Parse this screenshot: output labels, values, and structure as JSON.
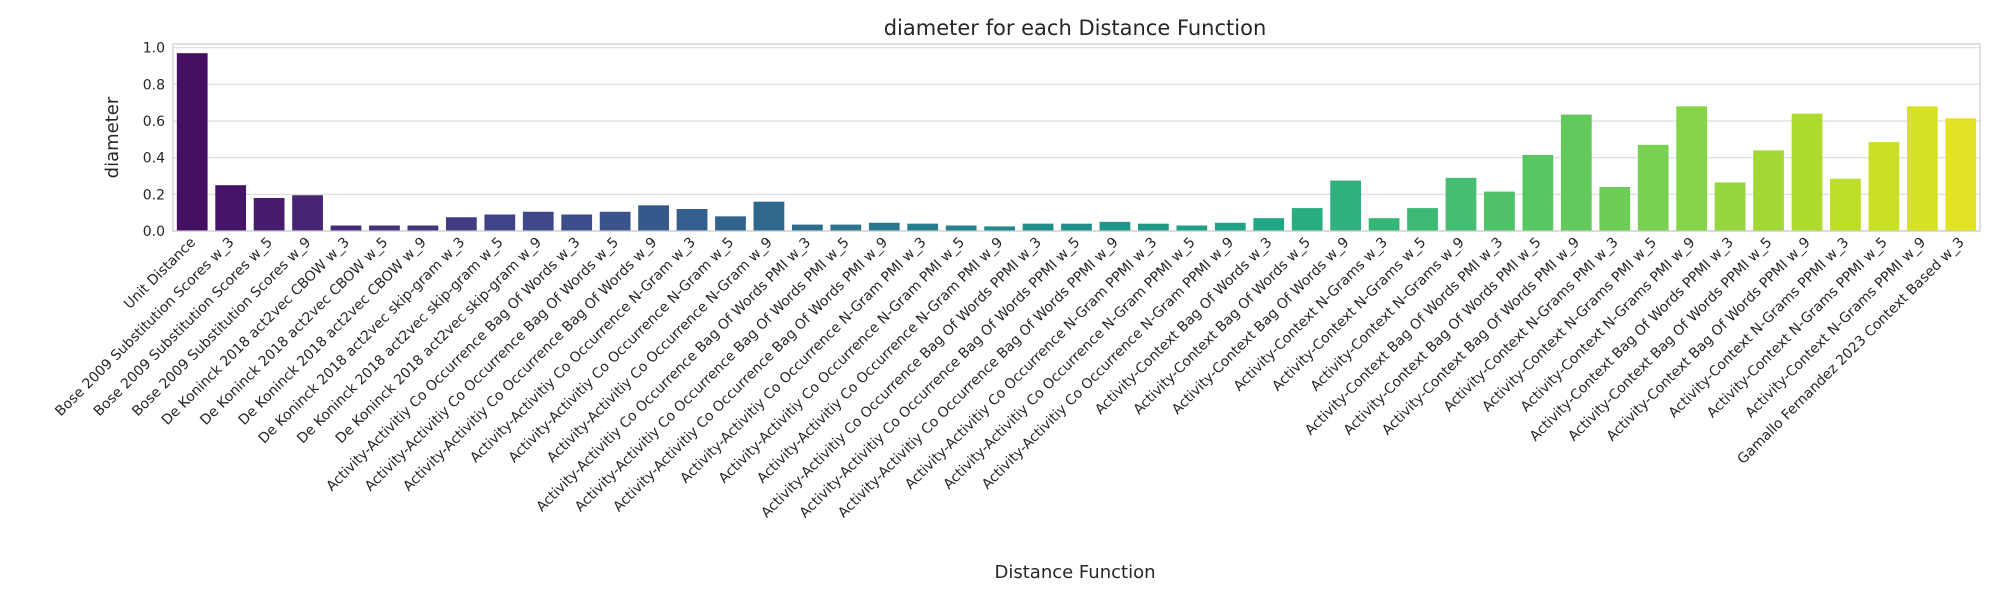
{
  "chart_data": {
    "type": "bar",
    "title": "diameter for each Distance Function",
    "xlabel": "Distance Function",
    "ylabel": "diameter",
    "ylim": [
      0,
      1.02
    ],
    "yticks": [
      "0.0",
      "0.2",
      "0.4",
      "0.6",
      "0.8",
      "1.0"
    ],
    "grid": true,
    "palette": "viridis",
    "categories": [
      "Unit Distance",
      "Bose 2009 Substitution Scores w_3",
      "Bose 2009 Substitution Scores w_5",
      "Bose 2009 Substitution Scores w_9",
      "De Koninck 2018 act2vec CBOW w_3",
      "De Koninck 2018 act2vec CBOW w_5",
      "De Koninck 2018 act2vec CBOW w_9",
      "De Koninck 2018 act2vec skip-gram w_3",
      "De Koninck 2018 act2vec skip-gram w_5",
      "De Koninck 2018 act2vec skip-gram w_9",
      "Activity-Activitiy Co Occurrence Bag Of Words w_3",
      "Activity-Activitiy Co Occurrence Bag Of Words w_5",
      "Activity-Activitiy Co Occurrence Bag Of Words w_9",
      "Activity-Activitiy Co Occurrence N-Gram w_3",
      "Activity-Activitiy Co Occurrence N-Gram w_5",
      "Activity-Activitiy Co Occurrence N-Gram w_9",
      "Activity-Activitiy Co Occurrence Bag Of Words PMI w_3",
      "Activity-Activitiy Co Occurrence Bag Of Words PMI w_5",
      "Activity-Activitiy Co Occurrence Bag Of Words PMI w_9",
      "Activity-Activitiy Co Occurrence N-Gram PMI w_3",
      "Activity-Activitiy Co Occurrence N-Gram PMI w_5",
      "Activity-Activitiy Co Occurrence N-Gram PMI w_9",
      "Activity-Activitiy Co Occurrence Bag Of Words PPMI w_3",
      "Activity-Activitiy Co Occurrence Bag Of Words PPMI w_5",
      "Activity-Activitiy Co Occurrence Bag Of Words PPMI w_9",
      "Activity-Activitiy Co Occurrence N-Gram PPMI w_3",
      "Activity-Activitiy Co Occurrence N-Gram PPMI w_5",
      "Activity-Activitiy Co Occurrence N-Gram PPMI w_9",
      "Activity-Context Bag Of Words w_3",
      "Activity-Context Bag Of Words w_5",
      "Activity-Context Bag Of Words w_9",
      "Activity-Context N-Grams w_3",
      "Activity-Context N-Grams w_5",
      "Activity-Context N-Grams w_9",
      "Activity-Context Bag Of Words PMI w_3",
      "Activity-Context Bag Of Words PMI w_5",
      "Activity-Context Bag Of Words PMI w_9",
      "Activity-Context N-Grams PMI w_3",
      "Activity-Context N-Grams PMI w_5",
      "Activity-Context N-Grams PMI w_9",
      "Activity-Context Bag Of Words PPMI w_3",
      "Activity-Context Bag Of Words PPMI w_5",
      "Activity-Context Bag Of Words PPMI w_9",
      "Activity-Context N-Grams PPMI w_3",
      "Activity-Context N-Grams PPMI w_5",
      "Activity-Context N-Grams PPMI w_9",
      "Gamallo Fernandez 2023 Context Based w_3"
    ],
    "values": [
      0.97,
      0.25,
      0.18,
      0.195,
      0.03,
      0.03,
      0.03,
      0.075,
      0.09,
      0.105,
      0.09,
      0.105,
      0.14,
      0.12,
      0.08,
      0.16,
      0.035,
      0.035,
      0.045,
      0.04,
      0.03,
      0.025,
      0.04,
      0.04,
      0.05,
      0.04,
      0.03,
      0.045,
      0.07,
      0.125,
      0.275,
      0.07,
      0.125,
      0.29,
      0.215,
      0.415,
      0.635,
      0.24,
      0.47,
      0.68,
      0.265,
      0.44,
      0.64,
      0.285,
      0.485,
      0.68,
      0.615
    ]
  }
}
